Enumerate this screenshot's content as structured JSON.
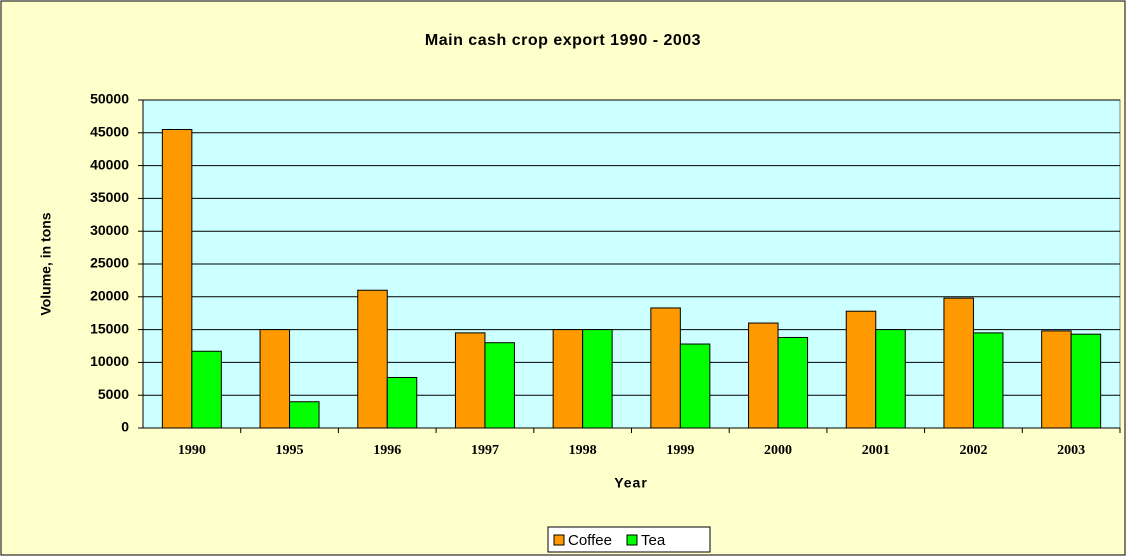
{
  "chart_data": {
    "type": "bar",
    "title": "Main cash crop export 1990 - 2003",
    "x_label": "Year",
    "y_label": "Volume, in tons",
    "categories": [
      "1990",
      "1995",
      "1996",
      "1997",
      "1998",
      "1999",
      "2000",
      "2001",
      "2002",
      "2003"
    ],
    "series": [
      {
        "name": "Coffee",
        "color": "#ff9900",
        "values": [
          45500,
          15000,
          21000,
          14500,
          15000,
          18300,
          16000,
          17800,
          19800,
          14800
        ]
      },
      {
        "name": "Tea",
        "color": "#00ff00",
        "values": [
          11700,
          4000,
          7700,
          13000,
          15000,
          12800,
          13800,
          15000,
          14500,
          14300
        ]
      }
    ],
    "ylim": [
      0,
      50000
    ],
    "yticks": [
      0,
      5000,
      10000,
      15000,
      20000,
      25000,
      30000,
      35000,
      40000,
      45000,
      50000
    ],
    "grid": true,
    "legend": "bottom"
  }
}
